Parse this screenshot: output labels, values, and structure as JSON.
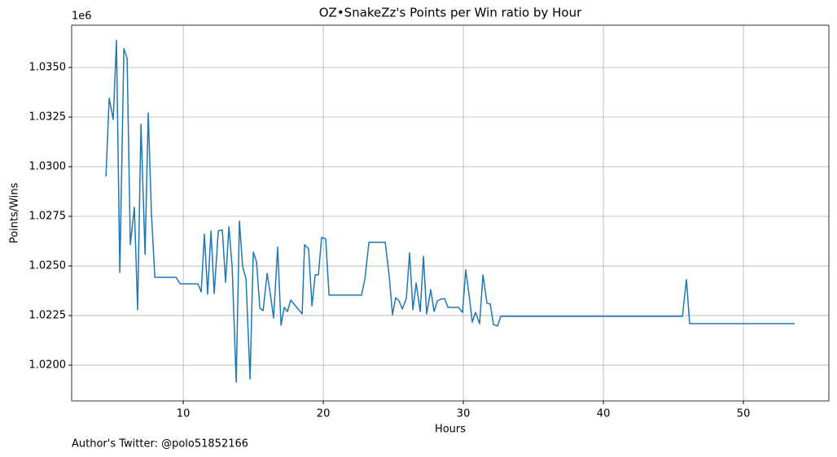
{
  "chart_data": {
    "type": "line",
    "title": "OZ•SnakeZz's Points per Win ratio by Hour",
    "xlabel": "Hours",
    "ylabel": "Points/Wins",
    "y_offset_label": "1e6",
    "footnote": "Author's Twitter: @polo51852166",
    "grid": true,
    "xlim": [
      2.03,
      56.1
    ],
    "ylim": [
      1.0182,
      1.03713
    ],
    "xticks": [
      10,
      20,
      30,
      40,
      50
    ],
    "yticks": [
      {
        "value": 1.02,
        "label": "1.0200"
      },
      {
        "value": 1.0225,
        "label": "1.0225"
      },
      {
        "value": 1.025,
        "label": "1.0250"
      },
      {
        "value": 1.0275,
        "label": "1.0275"
      },
      {
        "value": 1.03,
        "label": "1.0300"
      },
      {
        "value": 1.0325,
        "label": "1.0325"
      },
      {
        "value": 1.035,
        "label": "1.0350"
      }
    ],
    "x": [
      4.48,
      4.71,
      5.0,
      5.23,
      5.47,
      5.76,
      5.99,
      6.22,
      6.51,
      6.74,
      6.98,
      7.27,
      7.5,
      7.73,
      7.97,
      9.48,
      9.77,
      11.05,
      11.28,
      11.51,
      11.74,
      11.98,
      12.21,
      12.5,
      12.79,
      13.02,
      13.26,
      13.49,
      13.78,
      14.01,
      14.24,
      14.48,
      14.77,
      15.0,
      15.23,
      15.47,
      15.7,
      15.99,
      16.22,
      16.45,
      16.74,
      16.98,
      17.21,
      17.44,
      17.67,
      18.49,
      18.66,
      18.95,
      19.19,
      19.42,
      19.65,
      19.88,
      20.17,
      20.41,
      22.73,
      22.97,
      23.26,
      24.42,
      24.71,
      24.94,
      25.17,
      25.41,
      25.64,
      25.93,
      26.16,
      26.4,
      26.63,
      26.92,
      27.15,
      27.38,
      27.67,
      27.91,
      28.14,
      28.37,
      28.66,
      28.9,
      29.65,
      29.94,
      30.17,
      30.41,
      30.64,
      30.87,
      31.16,
      31.4,
      31.69,
      31.92,
      32.15,
      32.44,
      32.67,
      45.64,
      45.93,
      46.16,
      53.66
    ],
    "series": [
      {
        "name": "Points/Wins",
        "color": "#1f77b4",
        "values": [
          1.02951,
          1.03345,
          1.03238,
          1.03636,
          1.02467,
          1.03595,
          1.03546,
          1.02607,
          1.02795,
          1.02279,
          1.03214,
          1.02558,
          1.03271,
          1.02759,
          1.02443,
          1.02443,
          1.0241,
          1.0241,
          1.02369,
          1.0266,
          1.02357,
          1.02677,
          1.02361,
          1.02677,
          1.02681,
          1.02418,
          1.02697,
          1.02496,
          1.01914,
          1.02726,
          1.02496,
          1.02435,
          1.0193,
          1.0257,
          1.02521,
          1.02287,
          1.02275,
          1.02463,
          1.02357,
          1.02238,
          1.02595,
          1.02201,
          1.02291,
          1.0227,
          1.02328,
          1.02258,
          1.02607,
          1.02586,
          1.02299,
          1.02455,
          1.02455,
          1.02644,
          1.02636,
          1.02353,
          1.02353,
          1.02435,
          1.02619,
          1.02619,
          1.02447,
          1.02254,
          1.0234,
          1.02324,
          1.02283,
          1.02336,
          1.02566,
          1.02279,
          1.02414,
          1.0227,
          1.02549,
          1.02258,
          1.02381,
          1.0227,
          1.02324,
          1.02332,
          1.02336,
          1.02291,
          1.02291,
          1.02266,
          1.0248,
          1.02353,
          1.02217,
          1.02266,
          1.02209,
          1.02455,
          1.02312,
          1.02308,
          1.02205,
          1.02197,
          1.02246,
          1.02246,
          1.02431,
          1.02209,
          1.02209
        ]
      }
    ]
  }
}
